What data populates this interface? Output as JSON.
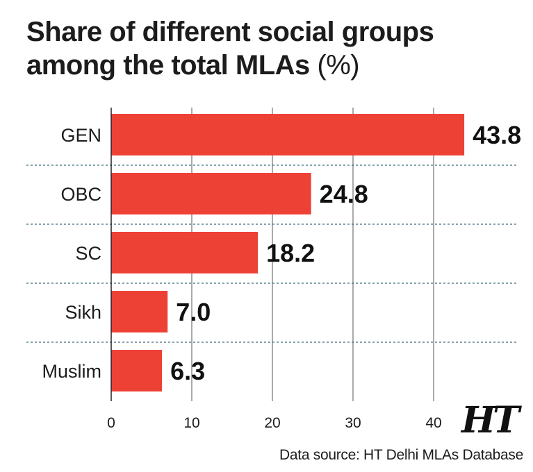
{
  "header": {
    "title_line1": "Share of different social groups",
    "title_line2": "among the total MLAs",
    "title_unit": "(%)"
  },
  "chart_data": {
    "type": "bar",
    "orientation": "horizontal",
    "categories": [
      "GEN",
      "OBC",
      "SC",
      "Sikh",
      "Muslim"
    ],
    "values": [
      43.8,
      24.8,
      18.2,
      7.0,
      6.3
    ],
    "data_labels": [
      "43.8",
      "24.8",
      "18.2",
      "7.0",
      "6.3"
    ],
    "xticks": [
      0,
      10,
      20,
      30,
      40
    ],
    "xlim": [
      0,
      45
    ],
    "grid": true,
    "bar_color": "#ee4136"
  },
  "footer": {
    "source": "Data source: HT Delhi MLAs Database",
    "logo": "HT"
  }
}
